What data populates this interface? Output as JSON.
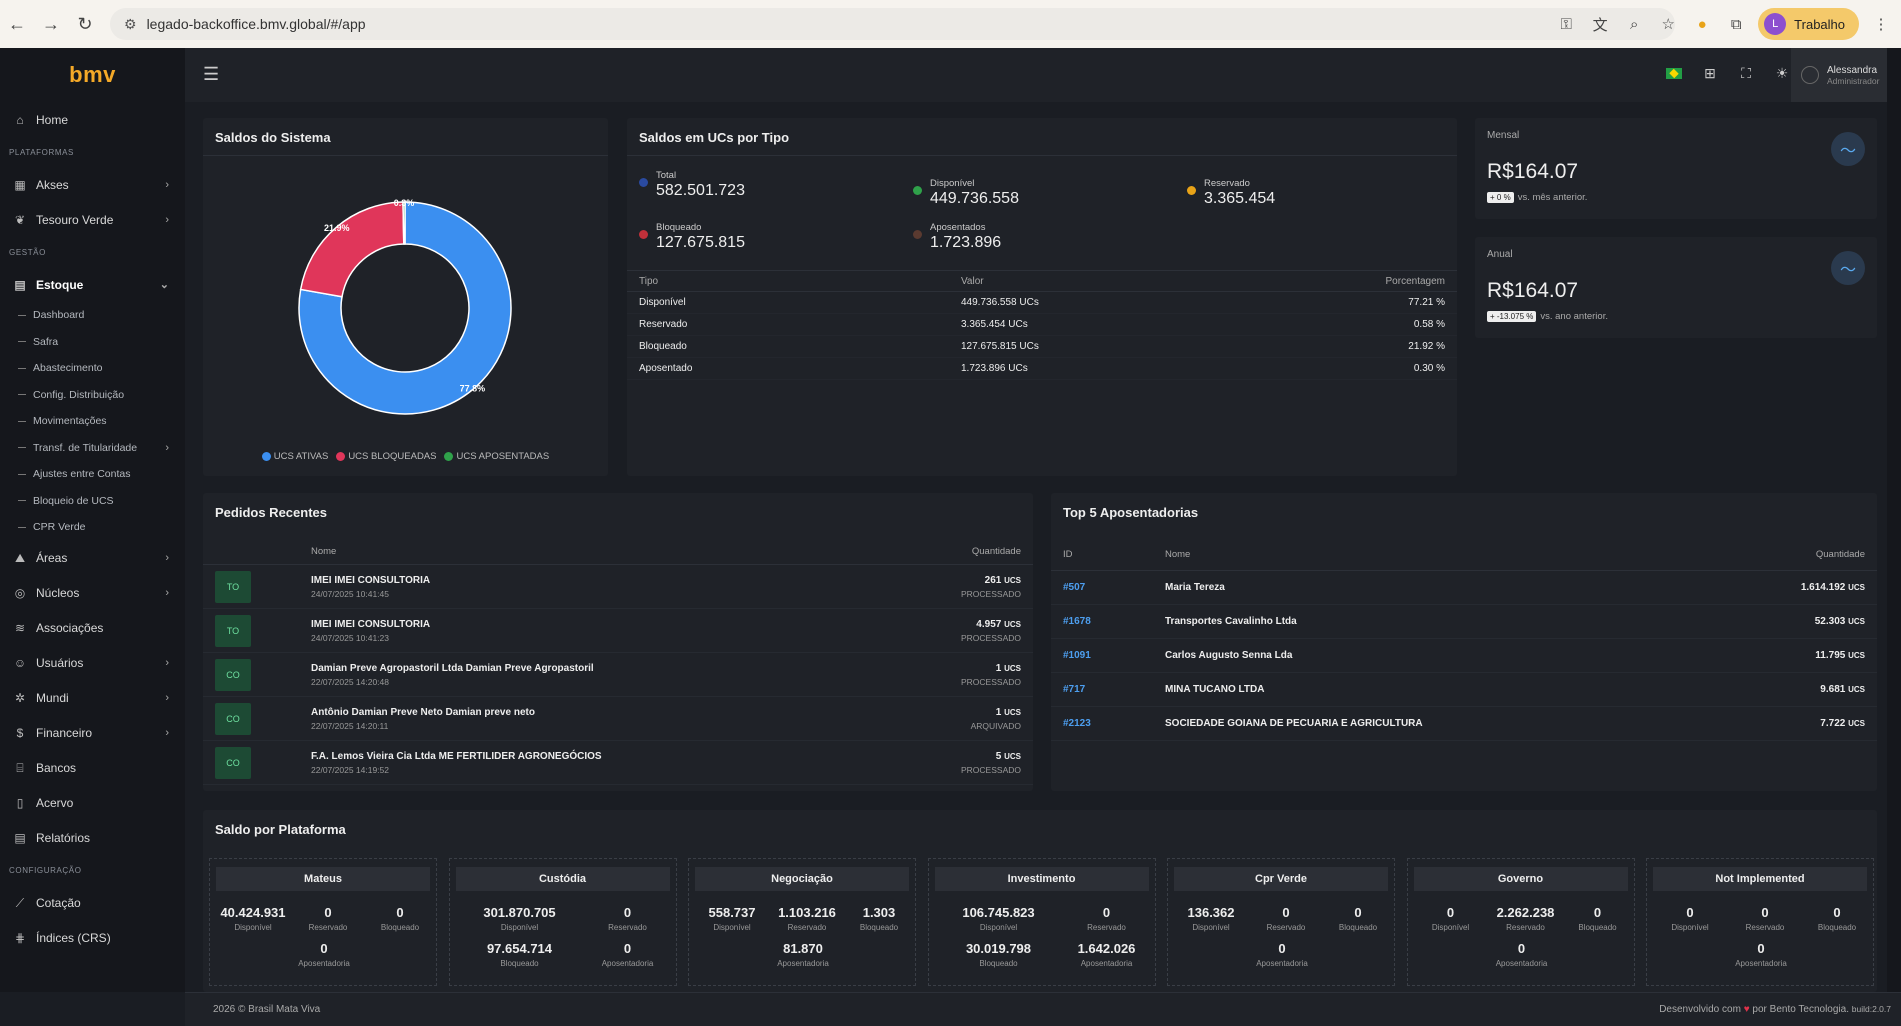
{
  "browser": {
    "url": "legado-backoffice.bmv.global/#/app",
    "profile_initial": "L",
    "profile_label": "Trabalho"
  },
  "sidebar": {
    "logo": "bmv",
    "home": "Home",
    "section_plataformas": "PLATAFORMAS",
    "akses": "Akses",
    "tesouro": "Tesouro Verde",
    "section_gestao": "GESTÃO",
    "estoque": "Estoque",
    "estoque_sub": [
      "Dashboard",
      "Safra",
      "Abastecimento",
      "Config. Distribuição",
      "Movimentações",
      "Transf. de Titularidade",
      "Ajustes entre Contas",
      "Bloqueio de UCS",
      "CPR Verde"
    ],
    "areas": "Áreas",
    "nucleos": "Núcleos",
    "associacoes": "Associações",
    "usuarios": "Usuários",
    "mundi": "Mundi",
    "financeiro": "Financeiro",
    "bancos": "Bancos",
    "acervo": "Acervo",
    "relatorios": "Relatórios",
    "section_config": "CONFIGURAÇÃO",
    "cotacao": "Cotação",
    "indices": "Índices (CRS)"
  },
  "header": {
    "user_name": "Alessandra",
    "user_role": "Administrador"
  },
  "saldos_sistema": {
    "title": "Saldos do Sistema",
    "legend": [
      {
        "label": "UCS ATIVAS",
        "color": "#3b8ff0"
      },
      {
        "label": "UCS BLOQUEADAS",
        "color": "#e0365a"
      },
      {
        "label": "UCS APOSENTADAS",
        "color": "#2fa14a"
      }
    ]
  },
  "chart_data": {
    "type": "pie",
    "categories": [
      "UCS ATIVAS",
      "UCS BLOQUEADAS",
      "UCS APOSENTADAS"
    ],
    "values": [
      77.8,
      21.9,
      0.3
    ],
    "labels": [
      "77.8%",
      "21.9%",
      "0.3%"
    ],
    "colors": [
      "#3b8ff0",
      "#e0365a",
      "#2fa14a"
    ]
  },
  "ucs_tipo": {
    "title": "Saldos em UCs por Tipo",
    "stats": {
      "total": {
        "label": "Total",
        "value": "582.501.723",
        "color": "#2a4aa0"
      },
      "disponivel": {
        "label": "Disponível",
        "value": "449.736.558",
        "color": "#2fa14a"
      },
      "reservado": {
        "label": "Reservado",
        "value": "3.365.454",
        "color": "#e8a318"
      },
      "bloqueado": {
        "label": "Bloqueado",
        "value": "127.675.815",
        "color": "#c0303a"
      },
      "aposentados": {
        "label": "Aposentados",
        "value": "1.723.896",
        "color": "#5a3a30"
      }
    },
    "columns": [
      "Tipo",
      "Valor",
      "Porcentagem"
    ],
    "rows": [
      {
        "tipo": "Disponível",
        "valor": "449.736.558 UCs",
        "pct": "77.21 %"
      },
      {
        "tipo": "Reservado",
        "valor": "3.365.454 UCs",
        "pct": "0.58 %"
      },
      {
        "tipo": "Bloqueado",
        "valor": "127.675.815 UCs",
        "pct": "21.92 %"
      },
      {
        "tipo": "Aposentado",
        "valor": "1.723.896 UCs",
        "pct": "0.30 %"
      }
    ]
  },
  "mensal": {
    "label": "Mensal",
    "value": "R$164.07",
    "badge": "+ 0 %",
    "sub": "vs. mês anterior."
  },
  "anual": {
    "label": "Anual",
    "value": "R$164.07",
    "badge": "+ -13.075 %",
    "sub": "vs. ano anterior."
  },
  "pedidos": {
    "title": "Pedidos Recentes",
    "col_nome": "Nome",
    "col_qtd": "Quantidade",
    "rows": [
      {
        "badge": "TO",
        "name": "IMEI IMEI CONSULTORIA",
        "date": "24/07/2025 10:41:45",
        "qty": "261",
        "unit": "UCS",
        "status": "PROCESSADO"
      },
      {
        "badge": "TO",
        "name": "IMEI IMEI CONSULTORIA",
        "date": "24/07/2025 10:41:23",
        "qty": "4.957",
        "unit": "UCS",
        "status": "PROCESSADO"
      },
      {
        "badge": "CO",
        "name": "Damian Preve Agropastoril Ltda Damian Preve Agropastoril",
        "date": "22/07/2025 14:20:48",
        "qty": "1",
        "unit": "UCS",
        "status": "PROCESSADO"
      },
      {
        "badge": "CO",
        "name": "Antônio Damian Preve Neto Damian preve neto",
        "date": "22/07/2025 14:20:11",
        "qty": "1",
        "unit": "UCS",
        "status": "ARQUIVADO"
      },
      {
        "badge": "CO",
        "name": "F.A. Lemos Vieira Cia Ltda ME FERTILIDER AGRONEGÓCIOS",
        "date": "22/07/2025 14:19:52",
        "qty": "5",
        "unit": "UCS",
        "status": "PROCESSADO"
      }
    ]
  },
  "top5": {
    "title": "Top 5 Aposentadorias",
    "col_id": "ID",
    "col_nome": "Nome",
    "col_qtd": "Quantidade",
    "rows": [
      {
        "id": "#507",
        "name": "Maria Tereza",
        "qty": "1.614.192",
        "unit": "UCS"
      },
      {
        "id": "#1678",
        "name": "Transportes Cavalinho Ltda",
        "qty": "52.303",
        "unit": "UCS"
      },
      {
        "id": "#1091",
        "name": "Carlos Augusto Senna Lda",
        "qty": "11.795",
        "unit": "UCS"
      },
      {
        "id": "#717",
        "name": "MINA TUCANO LTDA",
        "qty": "9.681",
        "unit": "UCS"
      },
      {
        "id": "#2123",
        "name": "SOCIEDADE GOIANA DE PECUARIA E AGRICULTURA",
        "qty": "7.722",
        "unit": "UCS"
      }
    ]
  },
  "plataformas": {
    "title": "Saldo por Plataforma",
    "items": [
      {
        "name": "Mateus",
        "disp": "40.424.931",
        "res": "0",
        "bloq": "0",
        "apos": "0",
        "layout": "a"
      },
      {
        "name": "Custódia",
        "disp": "301.870.705",
        "res": "0",
        "bloq": "97.654.714",
        "apos": "0",
        "layout": "b"
      },
      {
        "name": "Negociação",
        "disp": "558.737",
        "res": "1.103.216",
        "bloq": "1.303",
        "apos": "81.870",
        "layout": "a"
      },
      {
        "name": "Investimento",
        "disp": "106.745.823",
        "res": "0",
        "bloq": "30.019.798",
        "apos": "1.642.026",
        "layout": "b"
      },
      {
        "name": "Cpr Verde",
        "disp": "136.362",
        "res": "0",
        "bloq": "0",
        "apos": "0",
        "layout": "a"
      },
      {
        "name": "Governo",
        "disp": "0",
        "res": "2.262.238",
        "bloq": "0",
        "apos": "0",
        "layout": "a"
      },
      {
        "name": "Not Implemented",
        "disp": "0",
        "res": "0",
        "bloq": "0",
        "apos": "0",
        "layout": "a"
      }
    ],
    "lbl_disp": "Disponível",
    "lbl_res": "Reservado",
    "lbl_bloq": "Bloqueado",
    "lbl_apos": "Aposentadoria"
  },
  "footer": {
    "left": "2026 © Brasil Mata Viva",
    "right_pre": "Desenvolvido com",
    "right_post": "por Bento Tecnologia.",
    "build": "build:2.0.7"
  }
}
